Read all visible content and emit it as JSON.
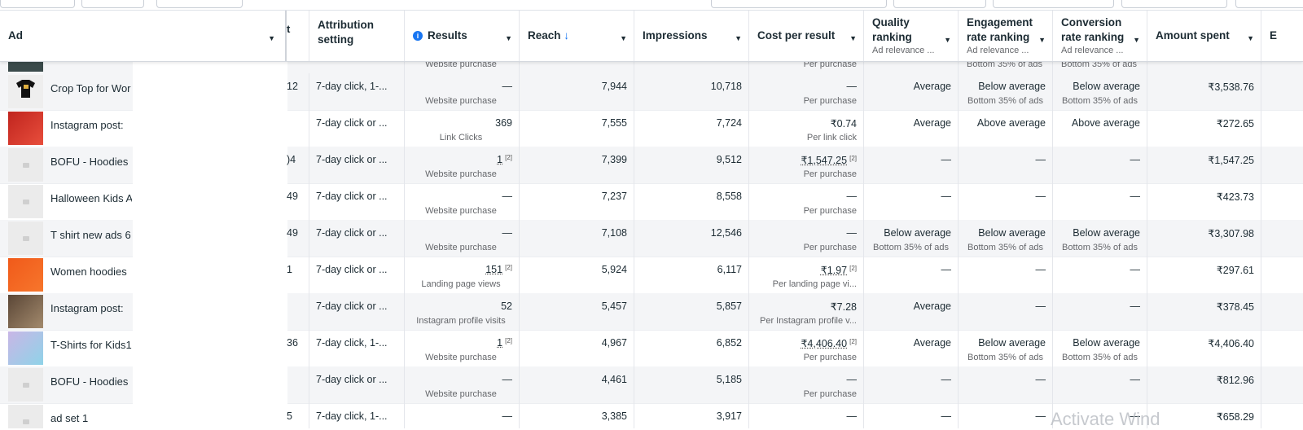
{
  "header": {
    "ad": "Ad",
    "partial_col": "t",
    "attribution": "Attribution setting",
    "results": "Results",
    "reach": "Reach",
    "reach_sort": "↓",
    "impressions": "Impressions",
    "cost_per_result": "Cost per result",
    "quality": "Quality ranking",
    "quality_sub": "Ad relevance ...",
    "engagement": "Engagement rate ranking",
    "engagement_sub": "Ad relevance ...",
    "conversion": "Conversion rate ranking",
    "conversion_sub": "Ad relevance ...",
    "amount": "Amount spent",
    "extra": "E"
  },
  "partial_row": {
    "results_sub": "Website purchase",
    "cost_sub": "Per purchase",
    "engagement_sub": "Bottom 35% of ads",
    "conversion_sub": "Bottom 35% of ads"
  },
  "rows": [
    {
      "name": "Crop Top for Wor",
      "partial": "12",
      "attribution": "7-day click, 1-...",
      "result": "—",
      "result_sub": "Website purchase",
      "reach": "7,944",
      "impressions": "10,718",
      "cost": "—",
      "cost_sub": "Per purchase",
      "quality": "Average",
      "quality_sub": "",
      "engagement": "Below average",
      "engagement_sub": "Bottom 35% of ads",
      "conversion": "Below average",
      "conversion_sub": "Bottom 35% of ads",
      "amount": "₹3,538.76"
    },
    {
      "name": "Instagram post:",
      "partial": "",
      "attribution": "7-day click or ...",
      "result": "369",
      "result_sub": "Link Clicks",
      "reach": "7,555",
      "impressions": "7,724",
      "cost": "₹0.74",
      "cost_sub": "Per link click",
      "quality": "Average",
      "quality_sub": "",
      "engagement": "Above average",
      "engagement_sub": "",
      "conversion": "Above average",
      "conversion_sub": "",
      "amount": "₹272.65"
    },
    {
      "name": "BOFU - Hoodies",
      "partial": ")4",
      "attribution": "7-day click or ...",
      "result": "1",
      "result_sup": "[2]",
      "result_sub": "Website purchase",
      "reach": "7,399",
      "impressions": "9,512",
      "cost": "₹1,547.25",
      "cost_sup": "[2]",
      "cost_sub": "Per purchase",
      "quality": "—",
      "quality_sub": "",
      "engagement": "—",
      "engagement_sub": "",
      "conversion": "—",
      "conversion_sub": "",
      "amount": "₹1,547.25"
    },
    {
      "name": "Halloween Kids A",
      "partial": "49",
      "attribution": "7-day click or ...",
      "result": "—",
      "result_sub": "Website purchase",
      "reach": "7,237",
      "impressions": "8,558",
      "cost": "—",
      "cost_sub": "Per purchase",
      "quality": "—",
      "quality_sub": "",
      "engagement": "—",
      "engagement_sub": "",
      "conversion": "—",
      "conversion_sub": "",
      "amount": "₹423.73"
    },
    {
      "name": "T shirt new ads 6",
      "partial": "49",
      "attribution": "7-day click or ...",
      "result": "—",
      "result_sub": "Website purchase",
      "reach": "7,108",
      "impressions": "12,546",
      "cost": "—",
      "cost_sub": "Per purchase",
      "quality": "Below average",
      "quality_sub": "Bottom 35% of ads",
      "engagement": "Below average",
      "engagement_sub": "Bottom 35% of ads",
      "conversion": "Below average",
      "conversion_sub": "Bottom 35% of ads",
      "amount": "₹3,307.98"
    },
    {
      "name": "Women hoodies",
      "partial": "1",
      "attribution": "7-day click or ...",
      "result": "151",
      "result_sup": "[2]",
      "result_sub": "Landing page views",
      "reach": "5,924",
      "impressions": "6,117",
      "cost": "₹1.97",
      "cost_sup": "[2]",
      "cost_sub": "Per landing page vi...",
      "quality": "—",
      "quality_sub": "",
      "engagement": "—",
      "engagement_sub": "",
      "conversion": "—",
      "conversion_sub": "",
      "amount": "₹297.61"
    },
    {
      "name": "Instagram post:",
      "partial": "",
      "attribution": "7-day click or ...",
      "result": "52",
      "result_sub": "Instagram profile visits",
      "reach": "5,457",
      "impressions": "5,857",
      "cost": "₹7.28",
      "cost_sub": "Per Instagram profile v...",
      "quality": "Average",
      "quality_sub": "",
      "engagement": "—",
      "engagement_sub": "",
      "conversion": "—",
      "conversion_sub": "",
      "amount": "₹378.45"
    },
    {
      "name": "T-Shirts for Kids1",
      "partial": "36",
      "attribution": "7-day click, 1-...",
      "result": "1",
      "result_sup": "[2]",
      "result_sub": "Website purchase",
      "reach": "4,967",
      "impressions": "6,852",
      "cost": "₹4,406.40",
      "cost_sup": "[2]",
      "cost_sub": "Per purchase",
      "quality": "Average",
      "quality_sub": "",
      "engagement": "Below average",
      "engagement_sub": "Bottom 35% of ads",
      "conversion": "Below average",
      "conversion_sub": "Bottom 35% of ads",
      "amount": "₹4,406.40"
    },
    {
      "name": "BOFU - Hoodies",
      "partial": "",
      "attribution": "7-day click or ...",
      "result": "—",
      "result_sub": "Website purchase",
      "reach": "4,461",
      "impressions": "5,185",
      "cost": "—",
      "cost_sub": "Per purchase",
      "quality": "—",
      "quality_sub": "",
      "engagement": "—",
      "engagement_sub": "",
      "conversion": "—",
      "conversion_sub": "",
      "amount": "₹812.96"
    },
    {
      "name": "ad set 1",
      "partial": "5",
      "attribution": "7-day click, 1-...",
      "result": "—",
      "result_sub": "",
      "reach": "3,385",
      "impressions": "3,917",
      "cost": "—",
      "cost_sub": "",
      "quality": "—",
      "quality_sub": "",
      "engagement": "—",
      "engagement_sub": "",
      "conversion": "—",
      "conversion_sub": "",
      "amount": "₹658.29"
    }
  ],
  "watermark": "Activate Wind"
}
